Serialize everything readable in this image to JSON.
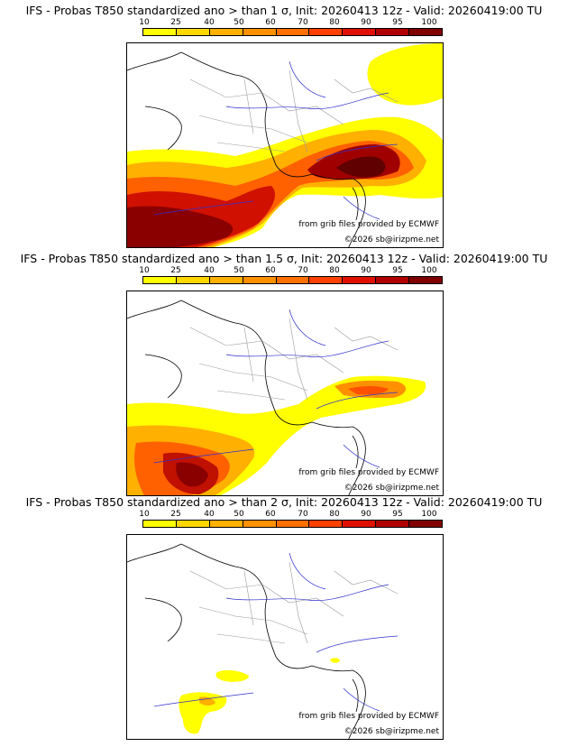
{
  "colorbar": {
    "labels": [
      "10",
      "25",
      "40",
      "50",
      "60",
      "70",
      "80",
      "90",
      "95",
      "100"
    ],
    "colors": [
      "#ffff00",
      "#ffd700",
      "#ffb000",
      "#ff9000",
      "#ff7000",
      "#ff4000",
      "#e01000",
      "#b00000",
      "#800000",
      "#500000"
    ]
  },
  "panels": [
    {
      "title": "IFS - Probas T850  standardized ano > than 1 σ, Init: 20260413 12z - Valid: 20260419:00 TU",
      "credit_source": "from grib files provided by ECMWF",
      "credit_copy": "©2026 sb@irizpme.net"
    },
    {
      "title": "IFS - Probas T850  standardized ano > than 1.5 σ, Init: 20260413 12z - Valid: 20260419:00 TU",
      "credit_source": "from grib files provided by ECMWF",
      "credit_copy": "©2026 sb@irizpme.net"
    },
    {
      "title": "IFS - Probas T850  standardized ano > than 2 σ, Init: 20260413 12z - Valid: 20260419:00 TU",
      "credit_source": "from grib files provided by ECMWF",
      "credit_copy": "©2026 sb@irizpme.net"
    }
  ]
}
